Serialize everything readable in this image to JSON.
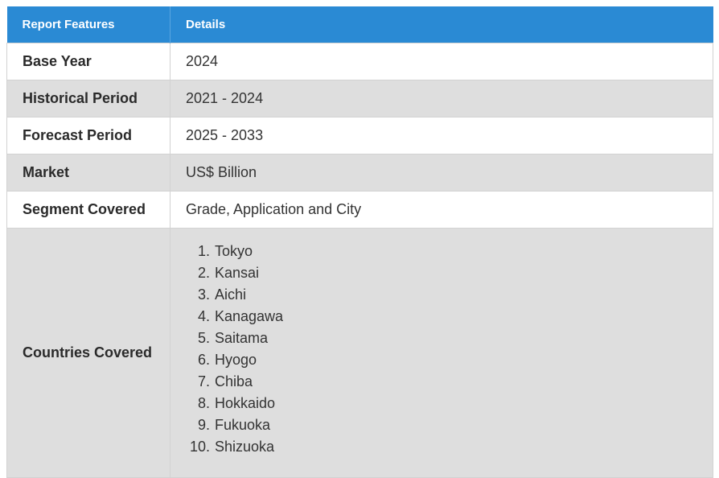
{
  "table": {
    "headers": [
      "Report Features",
      "Details"
    ],
    "rows": [
      {
        "feature": "Base Year",
        "detail": "2024"
      },
      {
        "feature": "Historical Period",
        "detail": "2021 - 2024"
      },
      {
        "feature": "Forecast Period",
        "detail": "2025 - 2033"
      },
      {
        "feature": "Market",
        "detail": "US$ Billion"
      },
      {
        "feature": "Segment Covered",
        "detail": "Grade, Application and City"
      }
    ],
    "countries_row": {
      "feature": "Countries Covered",
      "items": [
        "Tokyo",
        "Kansai",
        "Aichi",
        "Kanagawa",
        "Saitama",
        "Hyogo",
        "Chiba",
        "Hokkaido",
        "Fukuoka",
        "Shizuoka"
      ]
    }
  },
  "colors": {
    "header_bg": "#2a8ad4",
    "row_alt_bg": "#dedede"
  }
}
